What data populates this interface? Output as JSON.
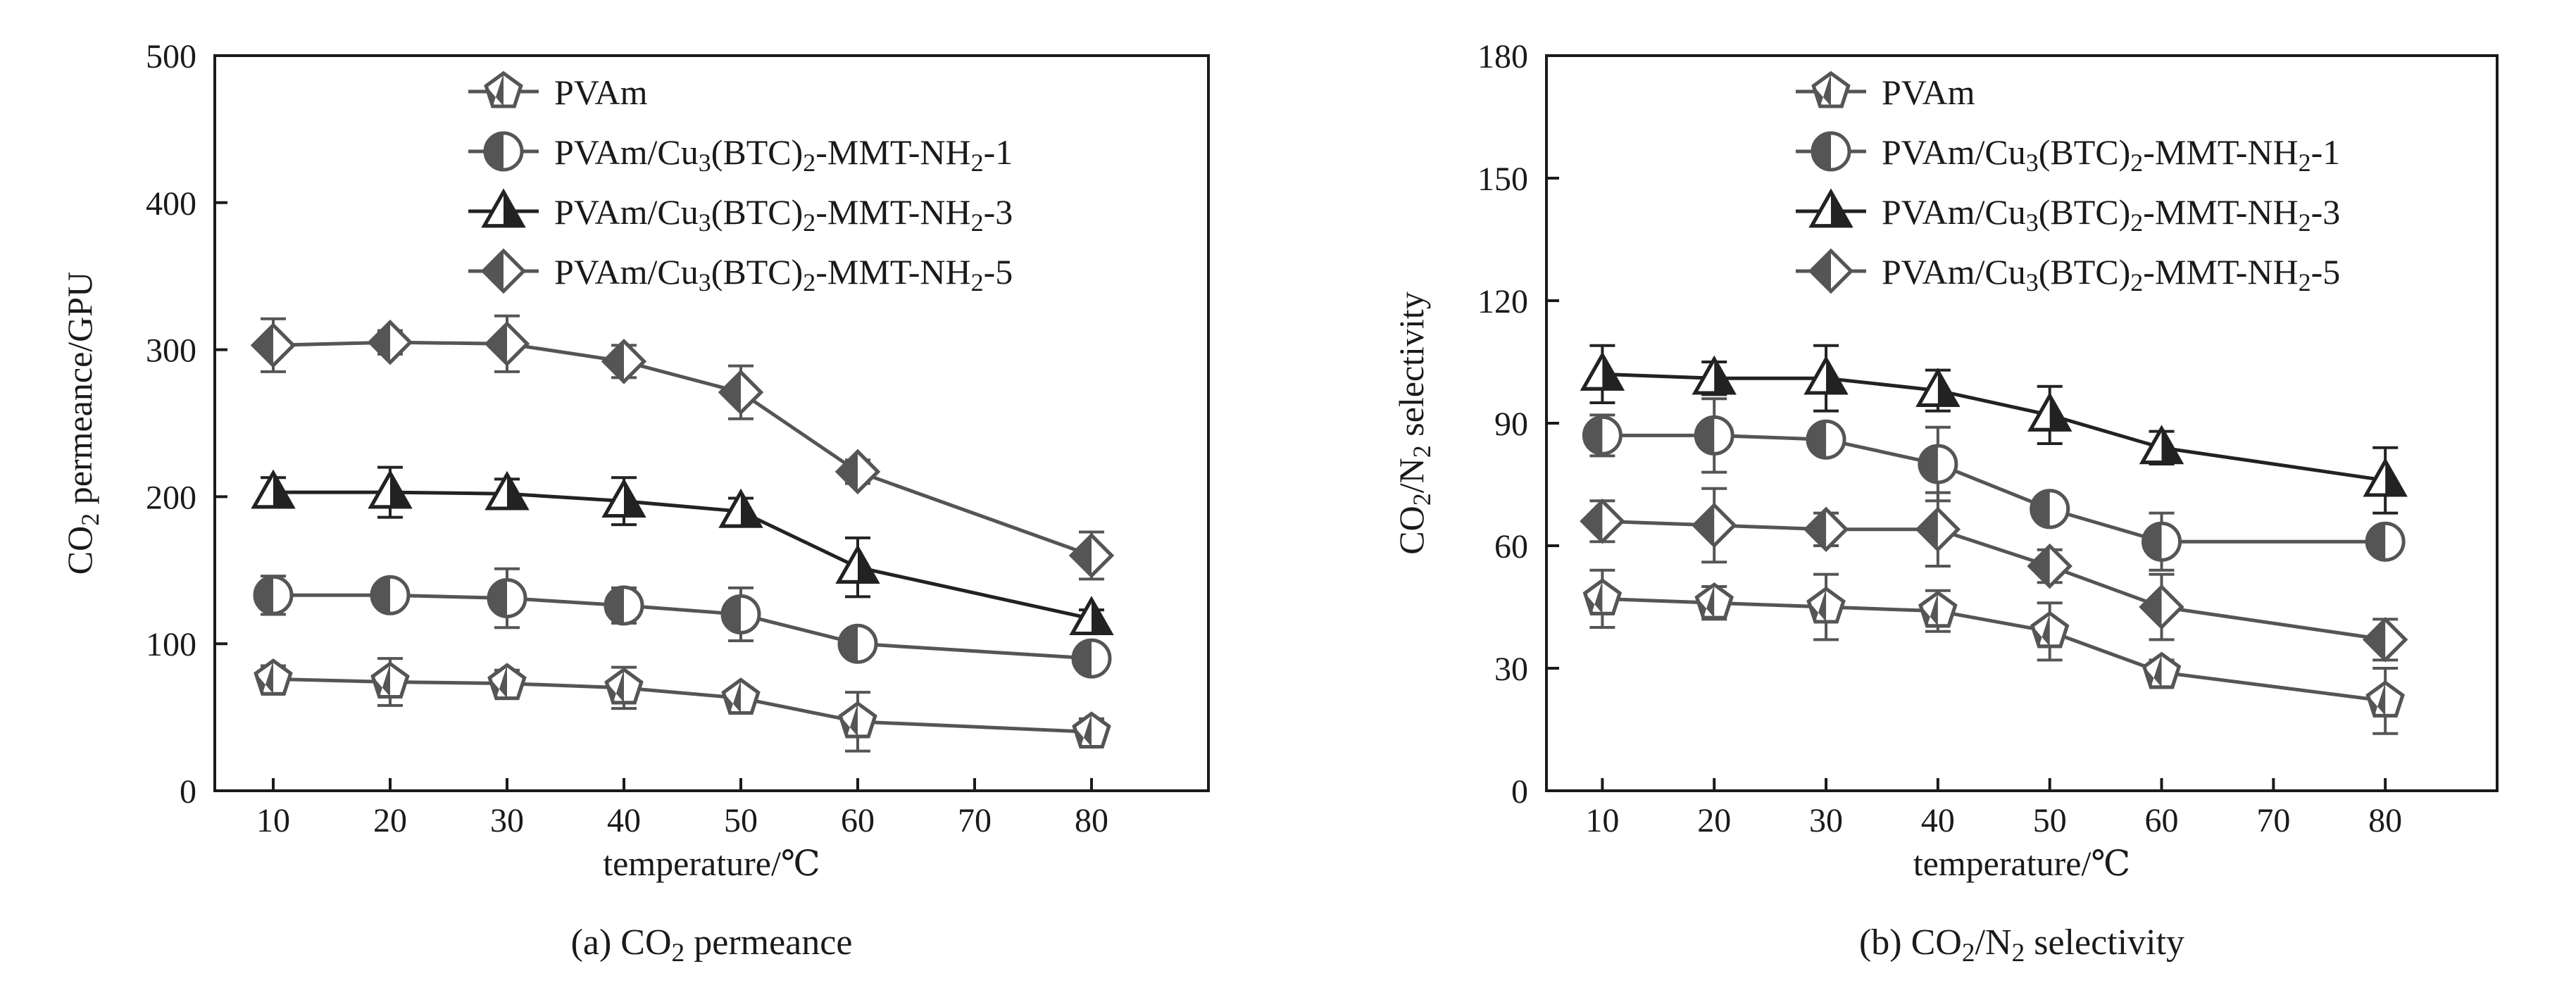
{
  "chart_data": [
    {
      "type": "line",
      "id": "a",
      "caption": "(a) CO2 permeance",
      "caption_parts": [
        "(a) CO",
        "2",
        " permeance"
      ],
      "xlabel": "temperature/℃",
      "ylabel_parts": [
        "CO",
        "2",
        " permeance/GPU"
      ],
      "ylabel": "CO2 permeance/GPU",
      "xlim": [
        5,
        90
      ],
      "ylim": [
        0,
        500
      ],
      "xticks": [
        10,
        20,
        30,
        40,
        50,
        60,
        70,
        80
      ],
      "yticks": [
        0,
        100,
        200,
        300,
        400,
        500
      ],
      "x": [
        10,
        20,
        30,
        40,
        50,
        60,
        80
      ],
      "series": [
        {
          "name": "PVAm",
          "legend_parts": [
            "PVAm"
          ],
          "marker": "pentagon",
          "color": "#555555",
          "line_color": "#555555",
          "values": [
            76,
            74,
            73,
            70,
            63,
            47,
            40
          ],
          "errors": [
            9,
            16,
            9,
            14,
            7,
            20,
            9
          ]
        },
        {
          "name": "PVAm/Cu3(BTC)2-MMT-NH2-1",
          "legend_parts": [
            "PVAm/Cu",
            "3",
            "(BTC)",
            "2",
            "-MMT-NH",
            "2",
            "-1"
          ],
          "marker": "circle",
          "color": "#555555",
          "line_color": "#555555",
          "values": [
            133,
            133,
            131,
            126,
            120,
            100,
            90
          ],
          "errors": [
            13,
            9,
            20,
            12,
            18,
            8,
            10
          ]
        },
        {
          "name": "PVAm/Cu3(BTC)2-MMT-NH2-3",
          "legend_parts": [
            "PVAm/Cu",
            "3",
            "(BTC)",
            "2",
            "-MMT-NH",
            "2",
            "-3"
          ],
          "marker": "triangle",
          "color": "#222222",
          "line_color": "#222222",
          "values": [
            203,
            203,
            202,
            197,
            190,
            152,
            117
          ],
          "errors": [
            10,
            17,
            10,
            16,
            9,
            20,
            6
          ]
        },
        {
          "name": "PVAm/Cu3(BTC)2-MMT-NH2-5",
          "legend_parts": [
            "PVAm/Cu",
            "3",
            "(BTC)",
            "2",
            "-MMT-NH",
            "2",
            "-5"
          ],
          "marker": "diamond",
          "color": "#555555",
          "line_color": "#555555",
          "values": [
            303,
            305,
            304,
            292,
            271,
            217,
            160
          ],
          "errors": [
            18,
            8,
            19,
            11,
            18,
            8,
            16
          ]
        }
      ]
    },
    {
      "type": "line",
      "id": "b",
      "caption": "(b) CO2/N2 selectivity",
      "caption_parts": [
        "(b) CO",
        "2",
        "/N",
        "2",
        " selectivity"
      ],
      "xlabel": "temperature/℃",
      "ylabel_parts": [
        "CO",
        "2",
        "/N",
        "2",
        " selectivity"
      ],
      "ylabel": "CO2/N2 selectivity",
      "xlim": [
        5,
        90
      ],
      "ylim": [
        0,
        180
      ],
      "xticks": [
        10,
        20,
        30,
        40,
        50,
        60,
        70,
        80
      ],
      "yticks": [
        0,
        30,
        60,
        90,
        120,
        150,
        180
      ],
      "x": [
        10,
        20,
        30,
        40,
        50,
        60,
        80
      ],
      "series": [
        {
          "name": "PVAm",
          "legend_parts": [
            "PVAm"
          ],
          "marker": "pentagon",
          "color": "#555555",
          "line_color": "#555555",
          "values": [
            47,
            46,
            45,
            44,
            39,
            29,
            22
          ],
          "errors": [
            7,
            4,
            8,
            5,
            7,
            3,
            8
          ]
        },
        {
          "name": "PVAm/Cu3(BTC)2-MMT-NH2-1",
          "legend_parts": [
            "PVAm/Cu",
            "3",
            "(BTC)",
            "2",
            "-MMT-NH",
            "2",
            "-1"
          ],
          "marker": "circle",
          "color": "#555555",
          "line_color": "#555555",
          "values": [
            87,
            87,
            86,
            80,
            69,
            61,
            61
          ],
          "errors": [
            5,
            9,
            3,
            9,
            3,
            7,
            3
          ]
        },
        {
          "name": "PVAm/Cu3(BTC)2-MMT-NH2-3",
          "legend_parts": [
            "PVAm/Cu",
            "3",
            "(BTC)",
            "2",
            "-MMT-NH",
            "2",
            "-3"
          ],
          "marker": "triangle",
          "color": "#222222",
          "line_color": "#222222",
          "values": [
            102,
            101,
            101,
            98,
            92,
            84,
            76
          ],
          "errors": [
            7,
            4,
            8,
            5,
            7,
            4,
            8
          ]
        },
        {
          "name": "PVAm/Cu3(BTC)2-MMT-NH2-5",
          "legend_parts": [
            "PVAm/Cu",
            "3",
            "(BTC)",
            "2",
            "-MMT-NH",
            "2",
            "-5"
          ],
          "marker": "diamond",
          "color": "#555555",
          "line_color": "#555555",
          "values": [
            66,
            65,
            64,
            64,
            55,
            45,
            37
          ],
          "errors": [
            5,
            9,
            4,
            9,
            4,
            8,
            5
          ]
        }
      ]
    }
  ]
}
